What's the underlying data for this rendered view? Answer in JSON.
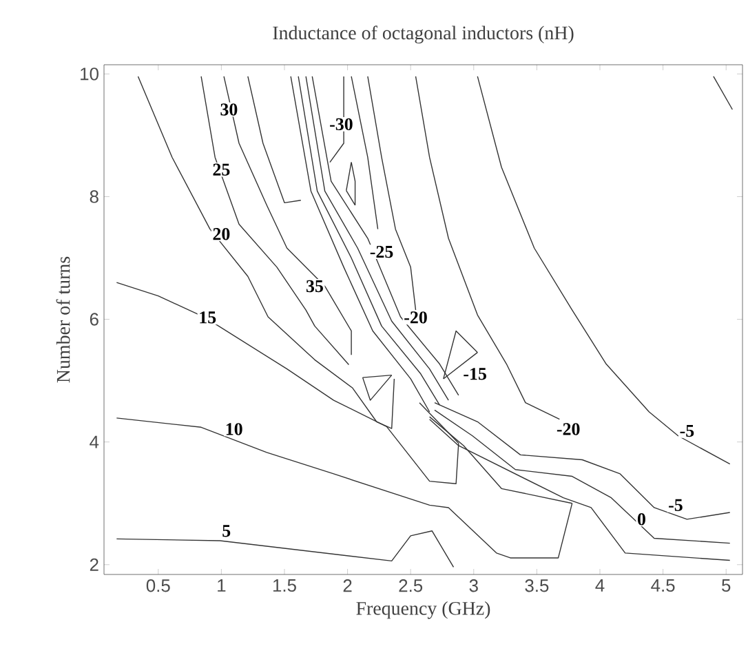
{
  "chart_data": {
    "type": "line",
    "title": "Inductance of octagonal inductors (nH)",
    "xlabel": "Frequency (GHz)",
    "ylabel": "Number of turns",
    "xlim": [
      0.07,
      5.13
    ],
    "ylim": [
      1.84,
      10.15
    ],
    "xticks": [
      0.5,
      1,
      1.5,
      2,
      2.5,
      3,
      3.5,
      4,
      4.5,
      5
    ],
    "yticks": [
      2,
      4,
      6,
      8,
      10
    ],
    "grid": false,
    "marker": "none",
    "line_style": "solid",
    "series": [
      {
        "color": "#333333",
        "x": [
          0.17,
          0.99,
          2.35,
          2.5,
          2.67,
          2.84
        ],
        "values": [
          2.42,
          2.39,
          2.06,
          2.47,
          2.55,
          1.96
        ]
      },
      {
        "color": "#333333",
        "x": [
          0.17,
          0.84,
          1.36,
          1.89,
          2.65,
          2.8,
          3.18,
          3.29,
          3.67,
          3.78
        ],
        "values": [
          4.39,
          4.24,
          3.83,
          3.48,
          2.97,
          2.93,
          2.19,
          2.11,
          2.11,
          3.0
        ]
      },
      {
        "color": "#333333",
        "x": [
          2.65,
          2.92,
          3.22,
          3.78
        ],
        "values": [
          4.41,
          3.94,
          3.24,
          3.0
        ]
      },
      {
        "color": "#333333",
        "x": [
          0.17,
          0.5,
          0.87,
          1.52,
          1.89,
          2.31,
          2.65,
          2.86,
          2.88
        ],
        "values": [
          6.6,
          6.38,
          6.03,
          5.19,
          4.68,
          4.25,
          3.36,
          3.32,
          3.98
        ]
      },
      {
        "color": "#333333",
        "x": [
          2.57,
          2.88
        ],
        "values": [
          4.64,
          3.98
        ]
      },
      {
        "color": "#333333",
        "x": [
          0.34,
          0.61,
          0.91,
          1.21,
          1.37,
          1.74,
          2.04,
          2.23,
          2.35,
          2.37
        ],
        "values": [
          9.96,
          8.64,
          7.47,
          6.7,
          6.04,
          5.34,
          4.88,
          4.33,
          4.22,
          5.03
        ]
      },
      {
        "color": "#333333",
        "x": [
          0.84,
          0.95,
          1.14,
          1.44,
          1.67,
          1.74,
          2.01
        ],
        "values": [
          9.96,
          8.64,
          7.55,
          6.85,
          6.15,
          5.89,
          5.26
        ]
      },
      {
        "color": "#333333",
        "x": [
          1.02,
          1.14,
          1.36,
          1.52,
          1.82,
          2.03,
          2.03
        ],
        "values": [
          9.96,
          8.87,
          7.86,
          7.16,
          6.54,
          5.81,
          5.42
        ]
      },
      {
        "color": "#333333",
        "x": [
          1.21,
          1.33,
          1.5,
          1.63
        ],
        "values": [
          9.96,
          8.87,
          7.9,
          7.94
        ]
      },
      {
        "color": "#333333",
        "x": [
          1.55,
          1.71,
          1.97,
          2.2,
          2.5,
          2.65
        ],
        "values": [
          9.96,
          8.09,
          6.85,
          5.81,
          5.03,
          4.49
        ]
      },
      {
        "color": "#333333",
        "x": [
          1.61,
          1.76,
          2.03,
          2.27,
          2.58,
          2.73
        ],
        "values": [
          9.96,
          8.09,
          7.0,
          5.89,
          5.11,
          4.6
        ]
      },
      {
        "color": "#333333",
        "x": [
          1.67,
          1.82,
          2.08,
          2.35,
          2.65,
          2.8
        ],
        "values": [
          9.96,
          8.09,
          7.16,
          5.97,
          5.19,
          4.68
        ]
      },
      {
        "color": "#333333",
        "x": [
          1.72,
          1.87,
          2.16,
          2.42,
          2.73,
          2.88
        ],
        "values": [
          9.96,
          8.25,
          7.32,
          6.04,
          5.27,
          4.76
        ]
      },
      {
        "color": "#333333",
        "x": [
          1.86,
          1.97,
          1.97
        ],
        "values": [
          8.56,
          8.87,
          9.96
        ]
      },
      {
        "color": "#333333",
        "x": [
          2.03,
          2.06,
          2.06
        ],
        "values": [
          8.56,
          8.25,
          7.86
        ]
      },
      {
        "color": "#333333",
        "x": [
          1.99,
          2.03
        ],
        "values": [
          8.1,
          8.56
        ]
      },
      {
        "color": "#333333",
        "x": [
          1.99,
          2.06
        ],
        "values": [
          8.1,
          7.86
        ]
      },
      {
        "color": "#333333",
        "x": [
          2.03,
          2.16,
          2.24
        ],
        "values": [
          9.96,
          8.64,
          7.47
        ]
      },
      {
        "color": "#333333",
        "x": [
          2.16,
          2.27,
          2.38,
          2.5,
          2.54
        ],
        "values": [
          9.96,
          8.64,
          7.47,
          6.85,
          6.15
        ]
      },
      {
        "color": "#333333",
        "x": [
          2.54,
          2.65,
          2.8,
          3.03,
          3.26,
          3.41,
          3.68
        ],
        "values": [
          9.96,
          8.64,
          7.32,
          6.07,
          5.27,
          4.64,
          4.37
        ]
      },
      {
        "color": "#333333",
        "x": [
          3.03,
          3.22,
          3.48,
          3.78,
          4.05,
          4.39,
          4.62,
          5.03
        ],
        "values": [
          9.96,
          8.48,
          7.16,
          6.15,
          5.27,
          4.49,
          4.1,
          3.64
        ]
      },
      {
        "color": "#333333",
        "x": [
          4.9,
          5.05
        ],
        "values": [
          9.96,
          9.42
        ]
      },
      {
        "color": "#333333",
        "x": [
          2.76,
          2.86,
          3.03
        ],
        "values": [
          5.03,
          5.81,
          5.46
        ]
      },
      {
        "color": "#333333",
        "x": [
          2.76,
          3.03
        ],
        "values": [
          5.03,
          5.46
        ]
      },
      {
        "color": "#333333",
        "x": [
          2.12,
          2.35
        ],
        "values": [
          5.05,
          5.09
        ]
      },
      {
        "color": "#333333",
        "x": [
          2.12,
          2.18,
          2.35
        ],
        "values": [
          5.05,
          4.68,
          5.09
        ]
      },
      {
        "color": "#333333",
        "x": [
          2.69,
          3.03,
          3.37,
          3.86,
          4.16,
          4.43,
          4.69,
          5.03
        ],
        "values": [
          4.64,
          4.33,
          3.79,
          3.71,
          3.48,
          2.93,
          2.74,
          2.85
        ]
      },
      {
        "color": "#333333",
        "x": [
          2.69,
          2.99,
          3.33,
          3.78,
          4.09,
          4.43,
          5.03
        ],
        "values": [
          4.52,
          4.1,
          3.55,
          3.44,
          3.09,
          2.43,
          2.35
        ]
      },
      {
        "color": "#333333",
        "x": [
          2.65,
          2.88,
          3.71,
          3.93,
          4.2,
          5.03
        ],
        "values": [
          4.37,
          3.94,
          3.09,
          2.93,
          2.19,
          2.07
        ]
      }
    ],
    "annotations": [
      {
        "text": "5",
        "x": 1.04,
        "y": 2.55
      },
      {
        "text": "10",
        "x": 1.1,
        "y": 4.21
      },
      {
        "text": "15",
        "x": 0.89,
        "y": 6.03
      },
      {
        "text": "20",
        "x": 1.0,
        "y": 7.39
      },
      {
        "text": "25",
        "x": 1.0,
        "y": 8.44
      },
      {
        "text": "30",
        "x": 1.06,
        "y": 9.42
      },
      {
        "text": "35",
        "x": 1.74,
        "y": 6.54
      },
      {
        "text": "-30",
        "x": 1.95,
        "y": 9.18
      },
      {
        "text": "-25",
        "x": 2.27,
        "y": 7.1
      },
      {
        "text": "-20",
        "x": 2.54,
        "y": 6.03
      },
      {
        "text": "-15",
        "x": 3.01,
        "y": 5.11
      },
      {
        "text": "-20",
        "x": 3.75,
        "y": 4.21
      },
      {
        "text": "-5",
        "x": 4.69,
        "y": 4.18
      },
      {
        "text": "-5",
        "x": 4.6,
        "y": 2.97
      },
      {
        "text": "0",
        "x": 4.33,
        "y": 2.74
      }
    ]
  }
}
